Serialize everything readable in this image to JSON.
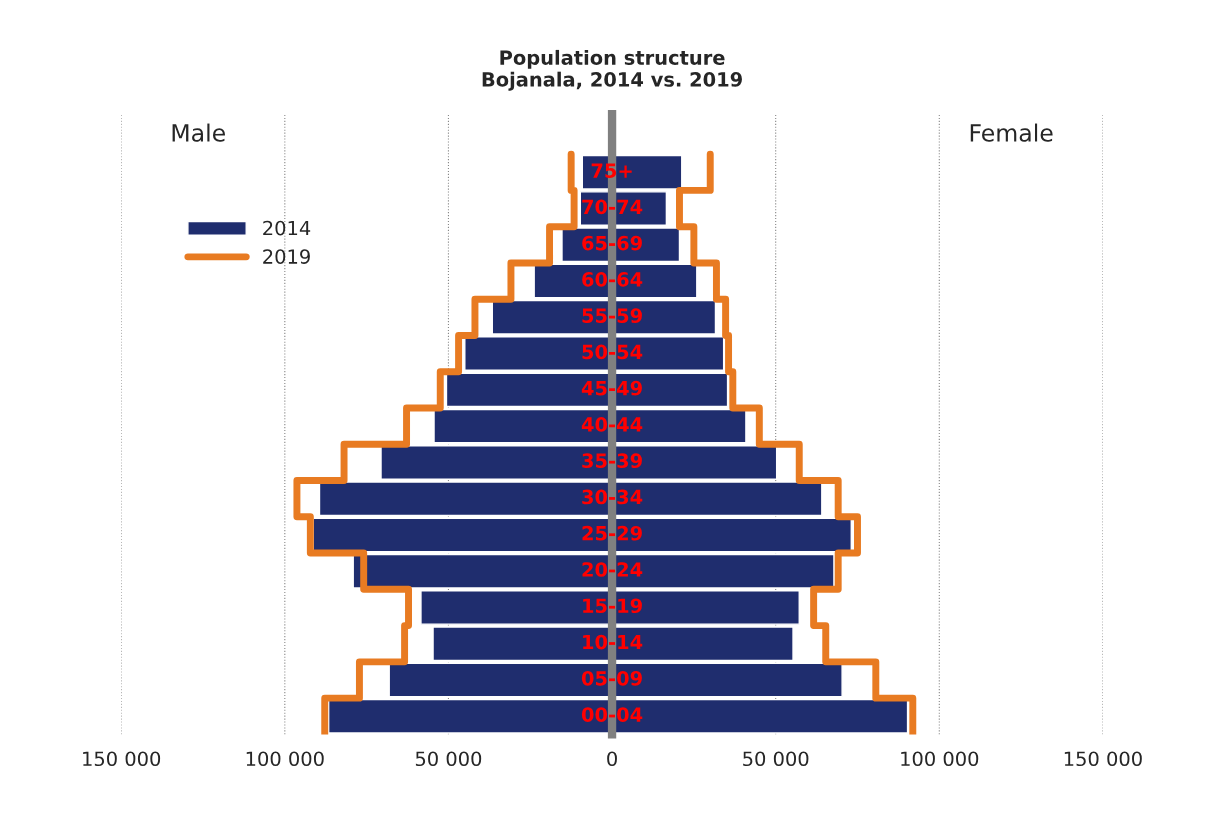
{
  "chart_data": {
    "type": "bar",
    "orientation": "horizontal",
    "title": "Population structure\nBojanala, 2014 vs. 2019",
    "categories": [
      "75+",
      "70-74",
      "65-69",
      "60-64",
      "55-59",
      "50-54",
      "45-49",
      "40-44",
      "35-39",
      "30-34",
      "25-29",
      "20-24",
      "15-19",
      "10-14",
      "05-09",
      "00-04"
    ],
    "series": [
      {
        "name": "2014",
        "color": "#1f2d6e",
        "values": [
          -9100,
          -9700,
          -15300,
          -23800,
          -36600,
          -45000,
          -50600,
          -54400,
          -70600,
          -89400,
          -91300,
          -79100,
          -58400,
          -54700,
          -68100,
          -86600
        ]
      },
      {
        "color": "#1f2d6e",
        "values": [
          21300,
          16600,
          20600,
          25900,
          31600,
          34100,
          35300,
          40900,
          50300,
          64100,
          73100,
          67800,
          57200,
          55300,
          70300,
          90300
        ]
      },
      {
        "name": "2019",
        "type": "step",
        "color": "#e87b22",
        "values": [
          -12500,
          -11600,
          -19100,
          -30900,
          -41900,
          -46900,
          -52500,
          -62800,
          -81900,
          -96300,
          -92200,
          -75900,
          -62200,
          -63400,
          -77200,
          -87800
        ]
      },
      {
        "type": "step",
        "color": "#e87b22",
        "values": [
          30000,
          20600,
          25000,
          31900,
          34700,
          35600,
          36900,
          45000,
          57200,
          69100,
          75000,
          69100,
          61600,
          65300,
          80600,
          91900
        ]
      }
    ],
    "xlim": [
      -150000,
      150000
    ],
    "xticks": [
      {
        "value": -150000,
        "label": "150 000"
      },
      {
        "value": -100000,
        "label": "100 000"
      },
      {
        "value": -50000,
        "label": "50 000"
      },
      0,
      {
        "value": 50000,
        "label": "50 000"
      },
      {
        "value": 100000,
        "label": "100 000"
      },
      {
        "value": 150000,
        "label": "150 000"
      }
    ],
    "annotations": [
      "Male",
      "Female"
    ],
    "grid": "x",
    "legend": "top left",
    "stacked": true
  }
}
